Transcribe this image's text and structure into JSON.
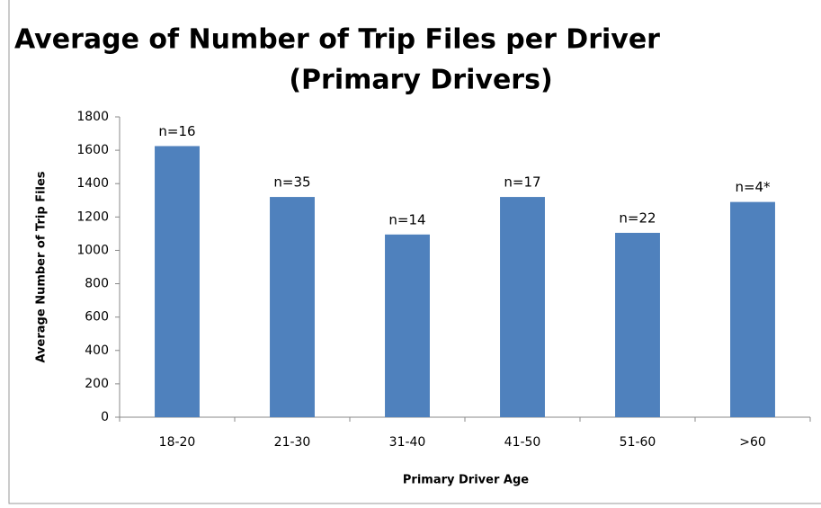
{
  "chart_data": {
    "type": "bar",
    "title": "Average of Number of Trip Files per Driver",
    "subtitle": "(Primary Drivers)",
    "categories": [
      "18-20",
      "21-30",
      "31-40",
      "41-50",
      "51-60",
      ">60"
    ],
    "values": [
      1625,
      1320,
      1095,
      1320,
      1105,
      1290
    ],
    "annotations": [
      "n=16",
      "n=35",
      "n=14",
      "n=17",
      "n=22",
      "n=4*"
    ],
    "color": "#4f81bd",
    "x_label": "Primary Driver Age",
    "y_label": "Average Number of Trip Files",
    "ylim": [
      0,
      1800
    ],
    "yticks": [
      0,
      200,
      400,
      600,
      800,
      1000,
      1200,
      1400,
      1600,
      1800
    ],
    "grid": false
  }
}
